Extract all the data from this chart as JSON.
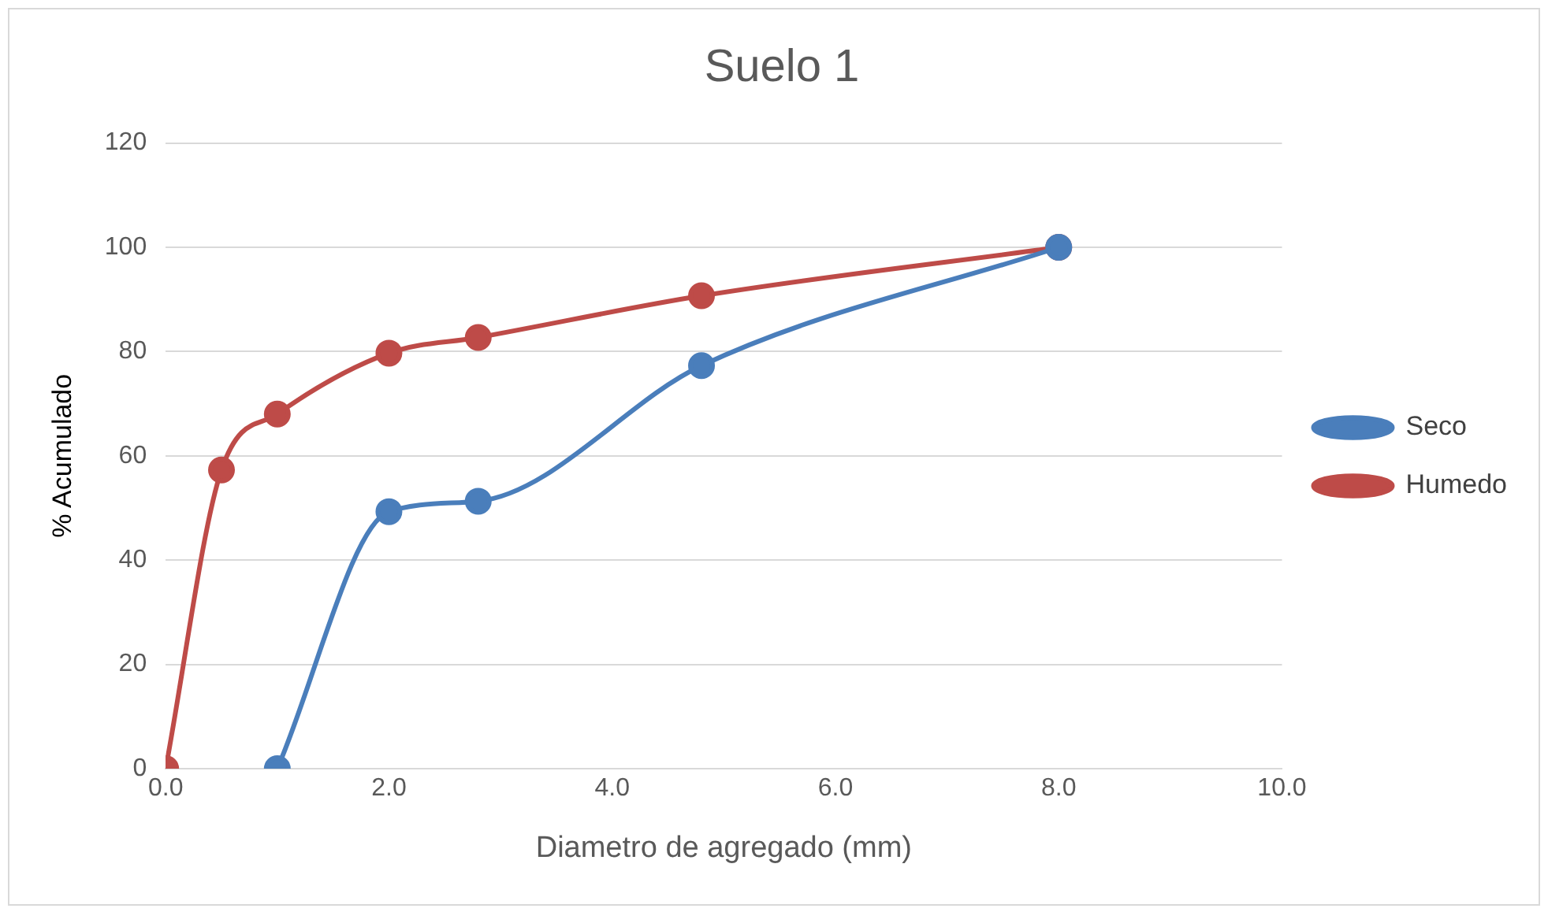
{
  "chart_data": {
    "type": "line",
    "title": "Suelo 1",
    "xlabel": "Diametro de agregado (mm)",
    "ylabel": "% Acumulado",
    "series": [
      {
        "name": "Seco",
        "color": "#4a7ebb",
        "x": [
          1.0,
          2.0,
          2.8,
          4.8,
          8.0
        ],
        "values": [
          0,
          49.3,
          51.3,
          77.3,
          100
        ]
      },
      {
        "name": "Humedo",
        "color": "#be4b48",
        "x": [
          0,
          0.5,
          1.0,
          2.0,
          2.8,
          4.8,
          8.0
        ],
        "values": [
          0,
          57.3,
          68,
          79.7,
          82.7,
          90.7,
          100
        ]
      }
    ],
    "xlim": [
      0,
      10
    ],
    "xticks": [
      {
        "value": 0,
        "label": "0.0"
      },
      {
        "value": 2,
        "label": "2.0"
      },
      {
        "value": 4,
        "label": "4.0"
      },
      {
        "value": 6,
        "label": "6.0"
      },
      {
        "value": 8,
        "label": "8.0"
      },
      {
        "value": 10,
        "label": "10.0"
      }
    ],
    "ylim": [
      0,
      120
    ],
    "yticks": [
      0,
      20,
      40,
      60,
      80,
      100,
      120
    ],
    "grid": "y",
    "legend": "right",
    "marker": "circle",
    "line_style": "solid"
  }
}
